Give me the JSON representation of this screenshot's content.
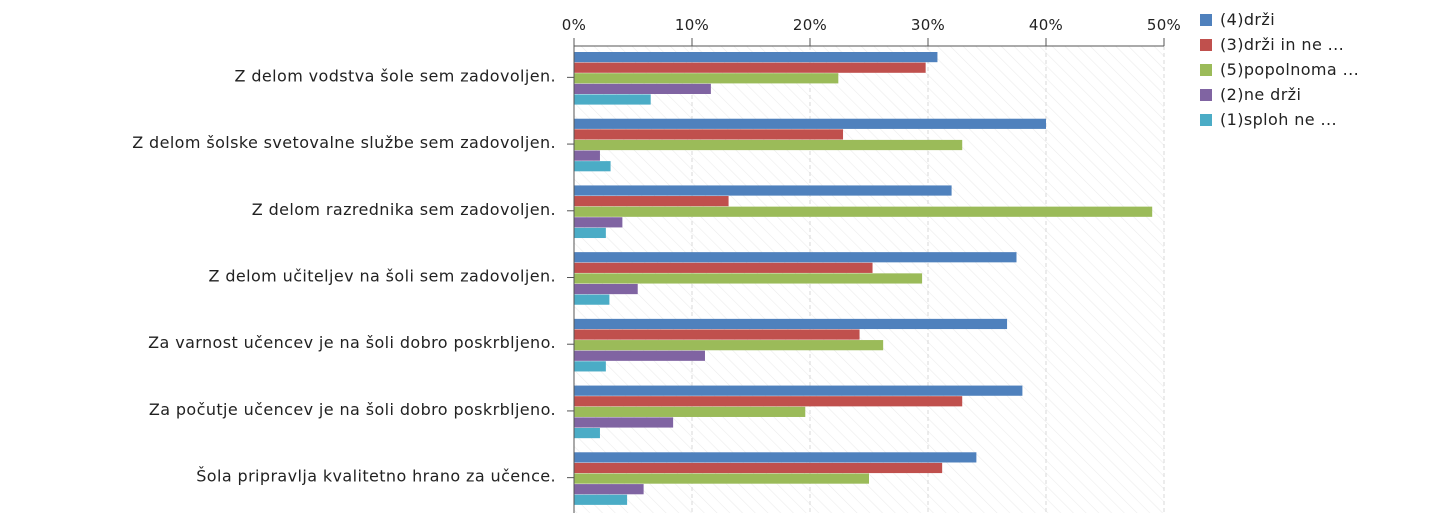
{
  "chart_data": {
    "type": "bar",
    "orientation": "horizontal",
    "xlim": [
      0,
      50
    ],
    "x_ticks": [
      "0%",
      "10%",
      "20%",
      "30%",
      "40%",
      "50%"
    ],
    "grid": true,
    "legend_position": "top-right",
    "categories": [
      "Z delom vodstva šole sem zadovoljen.",
      "Z delom šolske svetovalne službe sem zadovoljen.",
      "Z delom razrednika sem zadovoljen.",
      "Z delom učiteljev na šoli sem zadovoljen.",
      "Za varnost učencev je na šoli dobro poskrbljeno.",
      "Za počutje učencev je na šoli dobro poskrbljeno.",
      "Šola pripravlja kvalitetno hrano za učence."
    ],
    "series": [
      {
        "name": "(4)drži",
        "color": "#4f81bd",
        "values": [
          30.8,
          40.0,
          32.0,
          37.5,
          36.7,
          38.0,
          34.1
        ]
      },
      {
        "name": "(3)drži in ne ...",
        "color": "#c0504d",
        "values": [
          29.8,
          22.8,
          13.1,
          25.3,
          24.2,
          32.9,
          31.2
        ]
      },
      {
        "name": "(5)popolnoma ...",
        "color": "#9bbb59",
        "values": [
          22.4,
          32.9,
          49.0,
          29.5,
          26.2,
          19.6,
          25.0
        ]
      },
      {
        "name": "(2)ne drži",
        "color": "#8064a2",
        "values": [
          11.6,
          2.2,
          4.1,
          5.4,
          11.1,
          8.4,
          5.9
        ]
      },
      {
        "name": "(1)sploh ne ...",
        "color": "#4bacc6",
        "values": [
          6.5,
          3.1,
          2.7,
          3.0,
          2.7,
          2.2,
          4.5
        ]
      }
    ]
  }
}
